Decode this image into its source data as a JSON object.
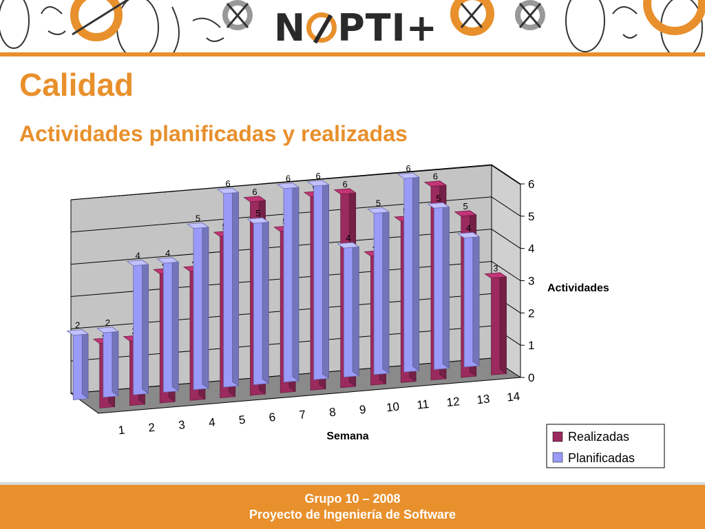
{
  "header": {
    "logo_text": "NOPTI+"
  },
  "slide": {
    "title": "Calidad",
    "subtitle": "Actividades planificadas y realizadas"
  },
  "footer": {
    "line1": "Grupo 10 – 2008",
    "line2": "Proyecto de Ingeniería de Software"
  },
  "colors": {
    "accent": "#e8902c",
    "realizadas": "#9b2a5e",
    "planificadas": "#9a9af8"
  },
  "chart_data": {
    "type": "bar",
    "categories": [
      "1",
      "2",
      "3",
      "4",
      "5",
      "6",
      "7",
      "8",
      "9",
      "10",
      "11",
      "12",
      "13",
      "14"
    ],
    "series": [
      {
        "name": "Realizadas",
        "values": [
          2,
          2,
          4,
          4,
          5,
          6,
          5,
          6,
          6,
          4,
          5,
          6,
          5,
          3
        ]
      },
      {
        "name": "Planificadas",
        "values": [
          2,
          2,
          4,
          4,
          5,
          6,
          5,
          6,
          6,
          4,
          5,
          6,
          5,
          4
        ]
      }
    ],
    "xlabel": "Semana",
    "ylabel": "Actividades",
    "ylim": [
      0,
      6
    ],
    "yticks": [
      "0",
      "1",
      "2",
      "3",
      "4",
      "5",
      "6"
    ],
    "grid": true,
    "legend": "bottom-right"
  }
}
